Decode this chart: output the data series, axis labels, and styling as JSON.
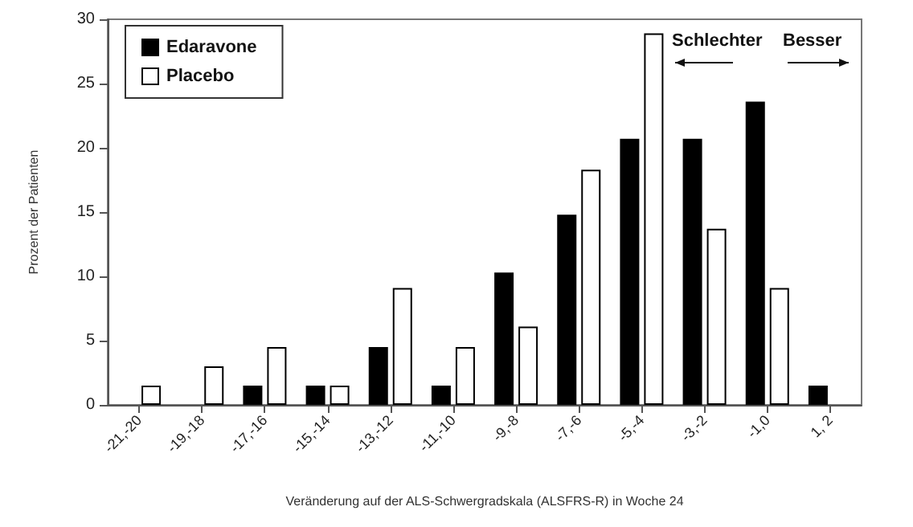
{
  "chart_data": {
    "type": "bar",
    "xlabel": "Veränderung auf der ALS-Schwergradskala (ALSFRS-R) in Woche 24",
    "ylabel": "Prozent der Patienten",
    "categories": [
      "-21,-20",
      "-19,-18",
      "-17,-16",
      "-15,-14",
      "-13,-12",
      "-11,-10",
      "-9,-8",
      "-7,-6",
      "-5,-4",
      "-3,-2",
      "-1,0",
      "1, 2"
    ],
    "series": [
      {
        "name": "Edaravone",
        "color": "#000000",
        "values": [
          null,
          null,
          1.5,
          1.5,
          4.5,
          1.5,
          10.3,
          14.8,
          20.7,
          20.7,
          23.6,
          1.5
        ]
      },
      {
        "name": "Placebo",
        "color": "#ffffff",
        "values": [
          1.5,
          3.0,
          4.5,
          1.5,
          9.1,
          4.5,
          6.1,
          18.3,
          28.9,
          13.7,
          9.1,
          null
        ]
      }
    ],
    "ylim": [
      0,
      30
    ],
    "yticks": [
      0,
      5,
      10,
      15,
      20,
      25,
      30
    ],
    "grid": false,
    "legend": "top left",
    "annotations": [
      "Schlechter",
      "Besser"
    ]
  }
}
